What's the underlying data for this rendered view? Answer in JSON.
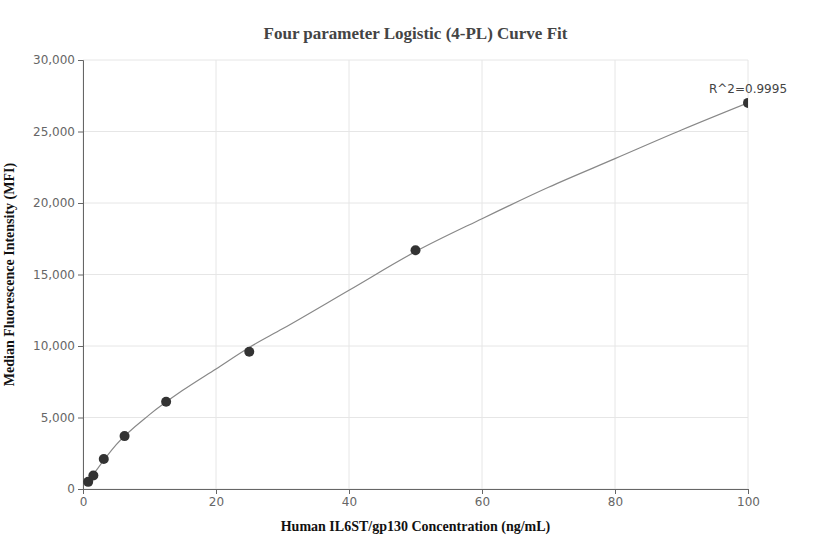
{
  "chart_data": {
    "type": "scatter",
    "title": "Four parameter Logistic (4-PL) Curve Fit",
    "x_label": "Human IL6ST/gp130 Concentration (ng/mL)",
    "y_label": "Median Fluorescence Intensity (MFI)",
    "series": [
      {
        "type": "scatter",
        "color": "#333333",
        "marker": "circle",
        "x": [
          0.78,
          1.56,
          3.125,
          6.25,
          12.5,
          25,
          50,
          100
        ],
        "values": [
          500,
          950,
          2100,
          3700,
          6100,
          9600,
          16700,
          27000
        ]
      },
      {
        "type": "line",
        "color": "#888888",
        "line_style": "solid",
        "x": [
          0.78,
          2,
          5,
          10,
          15,
          20,
          25,
          30,
          40,
          50,
          60,
          70,
          80,
          90,
          100
        ],
        "values": [
          500,
          1300,
          3100,
          5200,
          6900,
          8400,
          9900,
          11200,
          13900,
          16600,
          18900,
          21100,
          23100,
          25100,
          27000
        ]
      }
    ],
    "annotations": [
      {
        "text": "R^2=0.9995",
        "x": 100,
        "y": 27000
      }
    ],
    "xlim": [
      0,
      100
    ],
    "xticks": [
      0,
      20,
      40,
      60,
      80,
      100
    ],
    "ylim": [
      0,
      30000
    ],
    "yticks": [
      0,
      {
        "value": 5000,
        "label": "5,000"
      },
      {
        "value": 10000,
        "label": "10,000"
      },
      {
        "value": 15000,
        "label": "15,000"
      },
      {
        "value": 20000,
        "label": "20,000"
      },
      {
        "value": 25000,
        "label": "25,000"
      },
      {
        "value": 30000,
        "label": "30,000"
      }
    ],
    "grid": true
  }
}
